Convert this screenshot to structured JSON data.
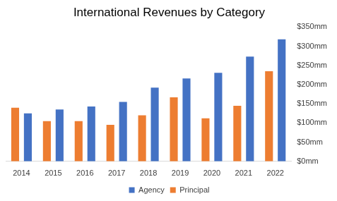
{
  "chart_data": {
    "type": "bar",
    "title": "International Revenues by Category",
    "categories": [
      "2014",
      "2015",
      "2016",
      "2017",
      "2018",
      "2019",
      "2020",
      "2021",
      "2022"
    ],
    "series": [
      {
        "name": "Agency",
        "color": "#4472c4",
        "values": [
          125,
          135,
          143,
          155,
          192,
          216,
          231,
          273,
          318
        ]
      },
      {
        "name": "Principal",
        "color": "#ed7d31",
        "values": [
          140,
          105,
          105,
          95,
          120,
          167,
          112,
          145,
          235
        ]
      }
    ],
    "ylim": [
      0,
      350
    ],
    "yticks": [
      {
        "value": 0,
        "label": "$0mm"
      },
      {
        "value": 50,
        "label": "$50mm"
      },
      {
        "value": 100,
        "label": "$100mm"
      },
      {
        "value": 150,
        "label": "$150mm"
      },
      {
        "value": 200,
        "label": "$200mm"
      },
      {
        "value": 250,
        "label": "$250mm"
      },
      {
        "value": 300,
        "label": "$300mm"
      },
      {
        "value": 350,
        "label": "$350mm"
      }
    ],
    "grid": false,
    "legend": "bottom"
  }
}
